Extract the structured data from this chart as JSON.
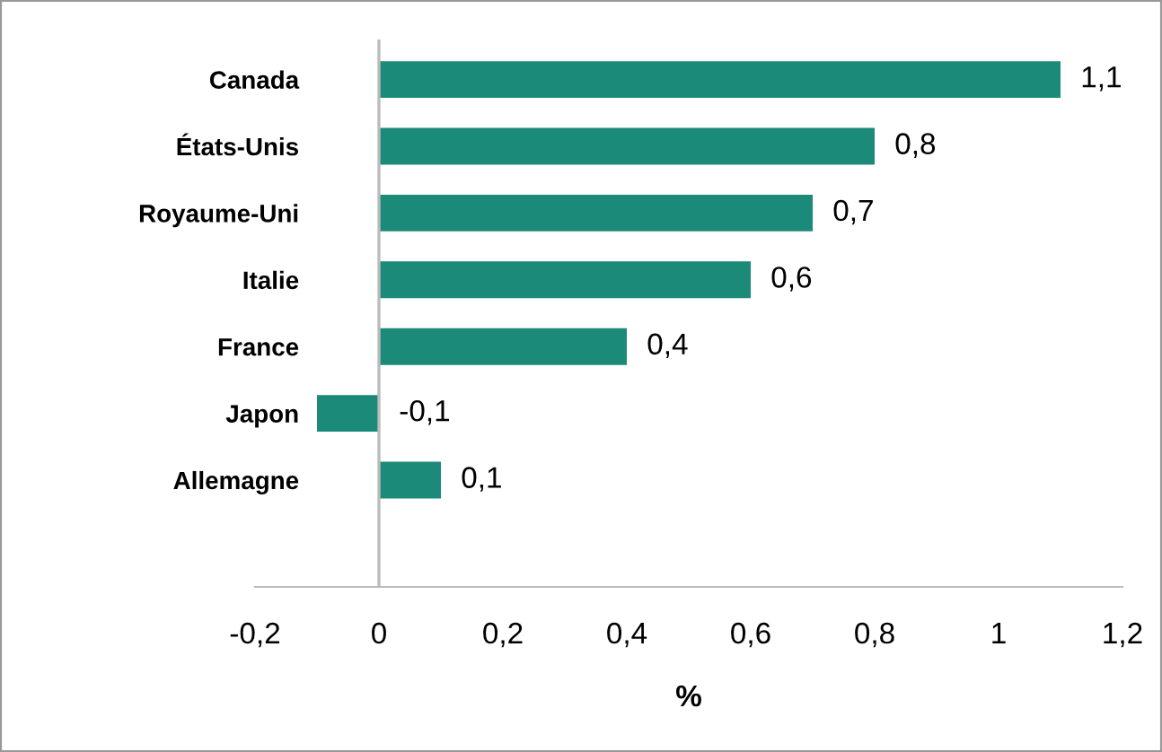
{
  "chart_data": {
    "type": "bar",
    "orientation": "horizontal",
    "xlabel": "%",
    "categories": [
      "Canada",
      "États-Unis",
      "Royaume-Uni",
      "Italie",
      "France",
      "Japon",
      "Allemagne"
    ],
    "values": [
      1.1,
      0.8,
      0.7,
      0.6,
      0.4,
      -0.1,
      0.1
    ],
    "value_labels": [
      "1,1",
      "0,8",
      "0,7",
      "0,6",
      "0,4",
      "-0,1",
      "0,1"
    ],
    "color": "#1b8a78",
    "xlim": [
      -0.2,
      1.2
    ],
    "xticks": [
      {
        "value": -0.2,
        "label": "-0,2"
      },
      0,
      {
        "value": 0.2,
        "label": "0,2"
      },
      {
        "value": 0.4,
        "label": "0,4"
      },
      {
        "value": 0.6,
        "label": "0,6"
      },
      {
        "value": 0.8,
        "label": "0,8"
      },
      1,
      {
        "value": 1.2,
        "label": "1,2"
      }
    ],
    "ref_lines": [
      {
        "axis": "x",
        "value": 0,
        "color": "#bbbbbb"
      }
    ],
    "grid": false,
    "legend": false
  }
}
